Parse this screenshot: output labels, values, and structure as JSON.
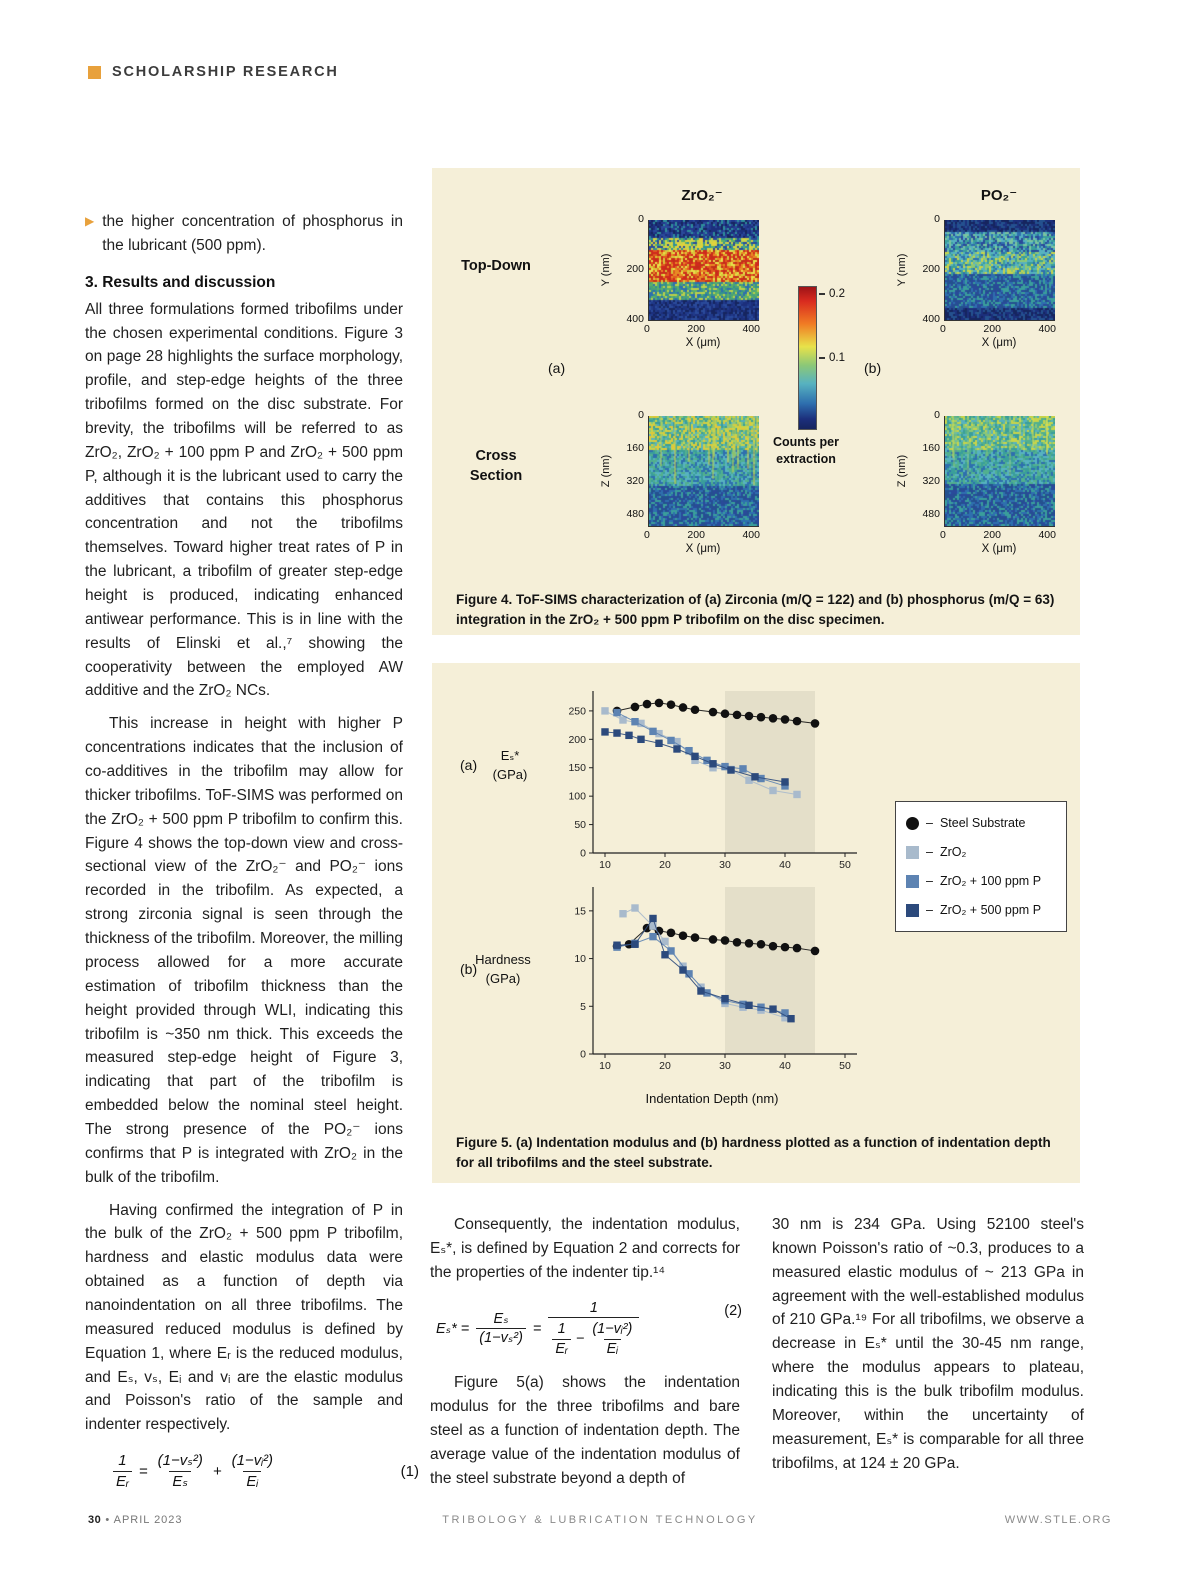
{
  "page": {
    "header": {
      "label": "SCHOLARSHIP RESEARCH"
    },
    "footer": {
      "page_number": "30",
      "separator": "•",
      "date": "APRIL 2023",
      "center": "TRIBOLOGY & LUBRICATION TECHNOLOGY",
      "right": "WWW.STLE.ORG"
    }
  },
  "colors": {
    "accent_orange": "#E8A13C",
    "panel_cream": "#F5EFD8",
    "steel_black": "#111111",
    "zro2_light": "#A8BACC",
    "zro2_100ppm": "#5D83B2",
    "zro2_500ppm": "#2C4A7C"
  },
  "left_column": {
    "bullet_item": "the higher concentration of phosphorus in the lubricant (500 ppm).",
    "section_heading": "3. Results and discussion",
    "paragraphs": [
      "All three formulations formed tribofilms under the chosen experimental conditions. Figure 3 on page 28 highlights the surface morphology, profile, and step-edge heights of the three tribofilms formed on the disc substrate. For brevity, the tribofilms will be referred to as ZrO₂, ZrO₂ + 100 ppm P and ZrO₂ + 500 ppm P, although it is the lubricant used to carry the additives that contains this phosphorus concentration and not the tribofilms themselves. Toward higher treat rates of P in the lubricant, a tribofilm of greater step-edge height is produced, indicating enhanced antiwear performance. This is in line with the results of Elinski et al.,⁷ showing the cooperativity between the employed AW additive and the ZrO₂ NCs.",
      "This increase in height with higher P concentrations indicates that the inclusion of co-additives in the tribofilm may allow for thicker tribofilms. ToF-SIMS was performed on the ZrO₂ + 500 ppm P tribofilm to confirm this. Figure 4 shows the top-down view and cross-sectional view of the ZrO₂⁻ and PO₂⁻ ions recorded in the tribofilm. As expected, a strong zirconia signal is seen through the thickness of the tribofilm. Moreover, the milling process allowed for a more accurate estimation of tribofilm thickness than the height provided through WLI, indicating this tribofilm is ~350 nm thick. This exceeds the measured step-edge height of Figure 3, indicating that part of the tribofilm is embedded below the nominal steel height. The strong presence of the PO₂⁻ ions confirms that P is integrated with ZrO₂ in the bulk of the tribofilm.",
      "Having confirmed the integration of P in the bulk of the ZrO₂ + 500 ppm P tribofilm, hardness and elastic modulus data were obtained as a function of depth via nanoindentation on all three tribofilms. The measured reduced modulus is defined by Equation 1, where Eᵣ is the reduced modulus, and Eₛ, vₛ, Eᵢ and vᵢ are the elastic modulus and Poisson's ratio of the sample and indenter respectively."
    ]
  },
  "equation1": {
    "number": "(1)",
    "lhs_num": "1",
    "lhs_den": "Eᵣ",
    "equals": "=",
    "t1_num": "(1−vₛ²)",
    "t1_den": "Eₛ",
    "plus": "+",
    "t2_num": "(1−vᵢ²)",
    "t2_den": "Eᵢ"
  },
  "equation2": {
    "number": "(2)",
    "lhs": "Eₛ* =",
    "f1_num": "Eₛ",
    "f1_den": "(1−vₛ²)",
    "equals": "=",
    "outer_num": "1",
    "d1_num": "1",
    "d1_den": "Eᵣ",
    "minus": "−",
    "d2_num": "(1−vᵢ²)",
    "d2_den": "Eᵢ"
  },
  "middle_column": {
    "paragraphs": [
      "Consequently, the indentation modulus, Eₛ*, is defined by Equation 2 and corrects for the properties of the indenter tip.¹⁴",
      "Figure 5(a) shows the indentation modulus for the three tribofilms and bare steel as a function of indentation depth. The average value of the indentation modulus of the steel substrate beyond a depth of"
    ]
  },
  "right_column": {
    "paragraphs": [
      "30 nm is 234 GPa. Using 52100 steel's known Poisson's ratio of ~0.3, produces to a measured elastic modulus of ~ 213 GPa in agreement with the well-established modulus of 210 GPa.¹⁹ For all tribofilms, we observe a decrease in Eₛ* until the 30-45 nm range, where the modulus appears to plateau, indicating this is the bulk tribofilm modulus. Moreover, within the uncertainty of measurement, Eₛ* is comparable for all three tribofilms, at 124 ± 20 GPa."
    ]
  },
  "figure4": {
    "col_titles": [
      "ZrO₂⁻",
      "PO₂⁻"
    ],
    "row_labels": [
      "Top-Down",
      "Cross Section"
    ],
    "sub_labels": [
      "(a)",
      "(b)"
    ],
    "axes": {
      "topdown_y_label": "Y (nm)",
      "cross_y_label": "Z (nm)",
      "x_label": "X (μm)",
      "topdown_y_ticks": [
        "0",
        "200",
        "400"
      ],
      "cross_y_ticks": [
        "0",
        "160",
        "320",
        "480"
      ],
      "x_ticks": [
        "0",
        "200",
        "400"
      ]
    },
    "colorbar": {
      "tick_values": [
        "0.2",
        "0.1"
      ],
      "label": "Counts per extraction"
    },
    "caption_lead": "Figure 4.",
    "caption_rest": " ToF-SIMS characterization of (a) Zirconia (m/Q = 122) and (b) phosphorus (m/Q = 63) integration in the ZrO₂ + 500 ppm P tribofilm on the disc specimen.",
    "maps": {
      "zro2_topdown": {
        "bands": [
          {
            "to": 0.16,
            "colors": [
              "#1c2f7c",
              "#22388c",
              "#16255f",
              "#2a4a9a",
              "#2f8f9b"
            ]
          },
          {
            "to": 0.28,
            "colors": [
              "#2f8f9b",
              "#59b06a",
              "#c8d44a",
              "#2a4a9a",
              "#e0d23c"
            ]
          },
          {
            "to": 0.6,
            "colors": [
              "#cf2a1d",
              "#e05a1e",
              "#e88a24",
              "#d8c83a",
              "#c03018",
              "#e8e24a",
              "#cf2a1d"
            ]
          },
          {
            "to": 0.78,
            "colors": [
              "#4aa07a",
              "#35908f",
              "#bcd04a",
              "#2e6fae",
              "#59b06a"
            ]
          },
          {
            "to": 1.0,
            "colors": [
              "#1c2f7c",
              "#203a8a",
              "#16255f",
              "#2a4a9a"
            ]
          }
        ]
      },
      "po2_topdown": {
        "bands": [
          {
            "to": 0.1,
            "colors": [
              "#16255f",
              "#1c2f7c",
              "#24518f"
            ]
          },
          {
            "to": 0.3,
            "colors": [
              "#2e6fae",
              "#3a9e9b",
              "#57b2c0",
              "#2a4a9a",
              "#7cc49e"
            ]
          },
          {
            "to": 0.52,
            "colors": [
              "#3a9e9b",
              "#57b2c0",
              "#8cc877",
              "#2e6fae",
              "#c8d44a",
              "#57b2c0"
            ]
          },
          {
            "to": 0.86,
            "colors": [
              "#2e6fae",
              "#24518f",
              "#3a9e9b",
              "#2a4a9a"
            ]
          },
          {
            "to": 1.0,
            "colors": [
              "#16255f",
              "#1c2f7c",
              "#24518f"
            ]
          }
        ]
      },
      "zro2_cross": {
        "bands": [
          {
            "to": 0.3,
            "colors": [
              "#3a9e9b",
              "#52b08e",
              "#c8d44a",
              "#e0c838",
              "#57b2c0",
              "#8cc877"
            ]
          },
          {
            "to": 0.62,
            "colors": [
              "#3a9e9b",
              "#2e6fae",
              "#57b2c0",
              "#52b08e"
            ]
          },
          {
            "to": 1.0,
            "colors": [
              "#2e6fae",
              "#24518f",
              "#2a4a9a",
              "#3a9e9b"
            ]
          }
        ],
        "streak": {
          "colors": [
            "#e0d23c",
            "#c8d44a"
          ],
          "count": 14,
          "depth": 0.5
        }
      },
      "po2_cross": {
        "bands": [
          {
            "to": 0.3,
            "colors": [
              "#52b08e",
              "#3a9e9b",
              "#c8d44a",
              "#57b2c0",
              "#8cc877"
            ]
          },
          {
            "to": 0.6,
            "colors": [
              "#3a9e9b",
              "#2e6fae",
              "#57b2c0",
              "#52b08e"
            ]
          },
          {
            "to": 1.0,
            "colors": [
              "#2e6fae",
              "#24518f",
              "#2a4a9a",
              "#3a9e9b"
            ]
          }
        ],
        "streak": {
          "colors": [
            "#d8e04e",
            "#8cc877"
          ],
          "count": 10,
          "depth": 0.45
        }
      }
    }
  },
  "figure5": {
    "panel_a_label": "(a)",
    "panel_b_label": "(b)",
    "ylabel_a_line1": "Eₛ*",
    "ylabel_a_line2": "(GPa)",
    "ylabel_b_line1": "Hardness",
    "ylabel_b_line2": "(GPa)",
    "xlabel": "Indentation Depth (nm)",
    "legend_dash": "–",
    "caption_lead": "Figure 5.",
    "caption_rest": " (a) Indentation modulus and (b) hardness plotted as a function of indentation depth for all tribofilms and the steel substrate."
  },
  "chart_data": [
    {
      "type": "scatter",
      "panel": "(a)",
      "title": "Indentation modulus vs indentation depth",
      "xlabel": "Indentation Depth (nm)",
      "ylabel": "Es* (GPa)",
      "xlim": [
        8,
        52
      ],
      "ylim": [
        0,
        285
      ],
      "xticks": [
        10,
        20,
        30,
        40,
        50
      ],
      "yticks": [
        0,
        50,
        100,
        150,
        200,
        250
      ],
      "grid": false,
      "legend_position": "right",
      "shaded_band_x": [
        30,
        45
      ],
      "series": [
        {
          "name": "Steel Substrate",
          "marker": "circle",
          "color": "#111111",
          "x": [
            12,
            15,
            17,
            19,
            21,
            23,
            25,
            28,
            30,
            32,
            34,
            36,
            38,
            40,
            42,
            45
          ],
          "y": [
            250,
            257,
            262,
            264,
            261,
            256,
            252,
            248,
            245,
            243,
            241,
            239,
            237,
            235,
            232,
            228
          ]
        },
        {
          "name": "ZrO₂",
          "marker": "square",
          "color": "#a8bacc",
          "x": [
            10,
            13,
            16,
            19,
            22,
            25,
            28,
            31,
            34,
            38,
            42
          ],
          "y": [
            250,
            234,
            228,
            210,
            196,
            163,
            150,
            147,
            128,
            110,
            103
          ]
        },
        {
          "name": "ZrO₂ + 100 ppm P",
          "marker": "square",
          "color": "#5d83b2",
          "x": [
            12,
            15,
            18,
            21,
            24,
            27,
            30,
            33,
            36,
            40
          ],
          "y": [
            247,
            231,
            214,
            198,
            180,
            163,
            152,
            148,
            131,
            118
          ]
        },
        {
          "name": "ZrO₂ + 500 ppm P",
          "marker": "square",
          "color": "#2c4a7c",
          "x": [
            10,
            12,
            14,
            16,
            19,
            22,
            25,
            28,
            31,
            35,
            40
          ],
          "y": [
            213,
            211,
            207,
            200,
            193,
            183,
            170,
            157,
            146,
            134,
            125
          ]
        }
      ]
    },
    {
      "type": "scatter",
      "panel": "(b)",
      "title": "Hardness vs indentation depth",
      "xlabel": "Indentation Depth (nm)",
      "ylabel": "Hardness (GPa)",
      "xlim": [
        8,
        52
      ],
      "ylim": [
        0,
        17.5
      ],
      "xticks": [
        10,
        20,
        30,
        40,
        50
      ],
      "yticks": [
        0,
        5,
        10,
        15
      ],
      "grid": false,
      "shaded_band_x": [
        30,
        45
      ],
      "series": [
        {
          "name": "Steel Substrate",
          "marker": "circle",
          "color": "#111111",
          "x": [
            12,
            14,
            17,
            19,
            21,
            23,
            25,
            28,
            30,
            32,
            34,
            36,
            38,
            40,
            42,
            45
          ],
          "y": [
            11.3,
            11.5,
            13.2,
            12.9,
            12.7,
            12.4,
            12.2,
            12.0,
            11.9,
            11.7,
            11.6,
            11.5,
            11.3,
            11.2,
            11.1,
            10.8
          ]
        },
        {
          "name": "ZrO₂",
          "marker": "square",
          "color": "#a8bacc",
          "x": [
            13,
            15,
            18,
            20,
            23,
            26,
            30,
            33,
            36,
            40
          ],
          "y": [
            14.7,
            15.3,
            13.4,
            11.8,
            9.2,
            7.0,
            5.3,
            4.9,
            4.6,
            3.8
          ]
        },
        {
          "name": "ZrO₂ + 100 ppm P",
          "marker": "square",
          "color": "#5d83b2",
          "x": [
            12,
            15,
            18,
            21,
            24,
            27,
            30,
            33,
            36,
            40
          ],
          "y": [
            11.2,
            11.6,
            12.3,
            10.8,
            8.4,
            6.4,
            5.6,
            5.2,
            4.9,
            4.3
          ]
        },
        {
          "name": "ZrO₂ + 500 ppm P",
          "marker": "square",
          "color": "#2c4a7c",
          "x": [
            12,
            15,
            18,
            20,
            23,
            26,
            30,
            34,
            38,
            41
          ],
          "y": [
            11.4,
            11.5,
            14.2,
            10.4,
            8.8,
            6.6,
            5.8,
            5.1,
            4.7,
            3.7
          ]
        }
      ]
    }
  ]
}
